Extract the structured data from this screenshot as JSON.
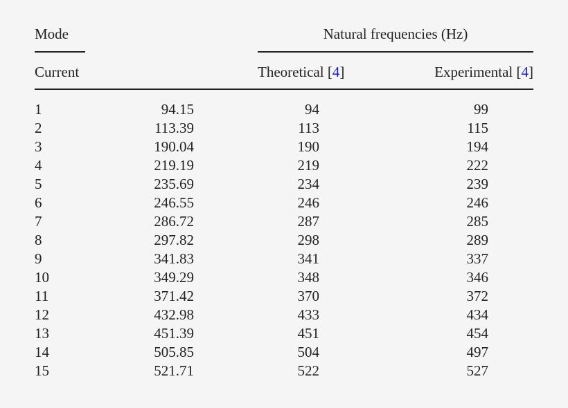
{
  "table": {
    "header": {
      "mode": "Mode",
      "group": "Natural frequencies (Hz)",
      "current": "Current",
      "theoretical": "Theoretical",
      "experimental": "Experimental",
      "ref_open": "[",
      "ref_num": "4",
      "ref_close": "]"
    },
    "columns": [
      "Mode",
      "Current",
      "Theoretical [4]",
      "Experimental [4]"
    ],
    "rows": [
      [
        "1",
        "94.15",
        "94",
        "99"
      ],
      [
        "2",
        "113.39",
        "113",
        "115"
      ],
      [
        "3",
        "190.04",
        "190",
        "194"
      ],
      [
        "4",
        "219.19",
        "219",
        "222"
      ],
      [
        "5",
        "235.69",
        "234",
        "239"
      ],
      [
        "6",
        "246.55",
        "246",
        "246"
      ],
      [
        "7",
        "286.72",
        "287",
        "285"
      ],
      [
        "8",
        "297.82",
        "298",
        "289"
      ],
      [
        "9",
        "341.83",
        "341",
        "337"
      ],
      [
        "10",
        "349.29",
        "348",
        "346"
      ],
      [
        "11",
        "371.42",
        "370",
        "372"
      ],
      [
        "12",
        "432.98",
        "433",
        "434"
      ],
      [
        "13",
        "451.39",
        "451",
        "454"
      ],
      [
        "14",
        "505.85",
        "504",
        "497"
      ],
      [
        "15",
        "521.71",
        "522",
        "527"
      ]
    ]
  },
  "colors": {
    "text": "#222222",
    "reference_link": "#1a1acc",
    "background": "#f5f5f5"
  }
}
